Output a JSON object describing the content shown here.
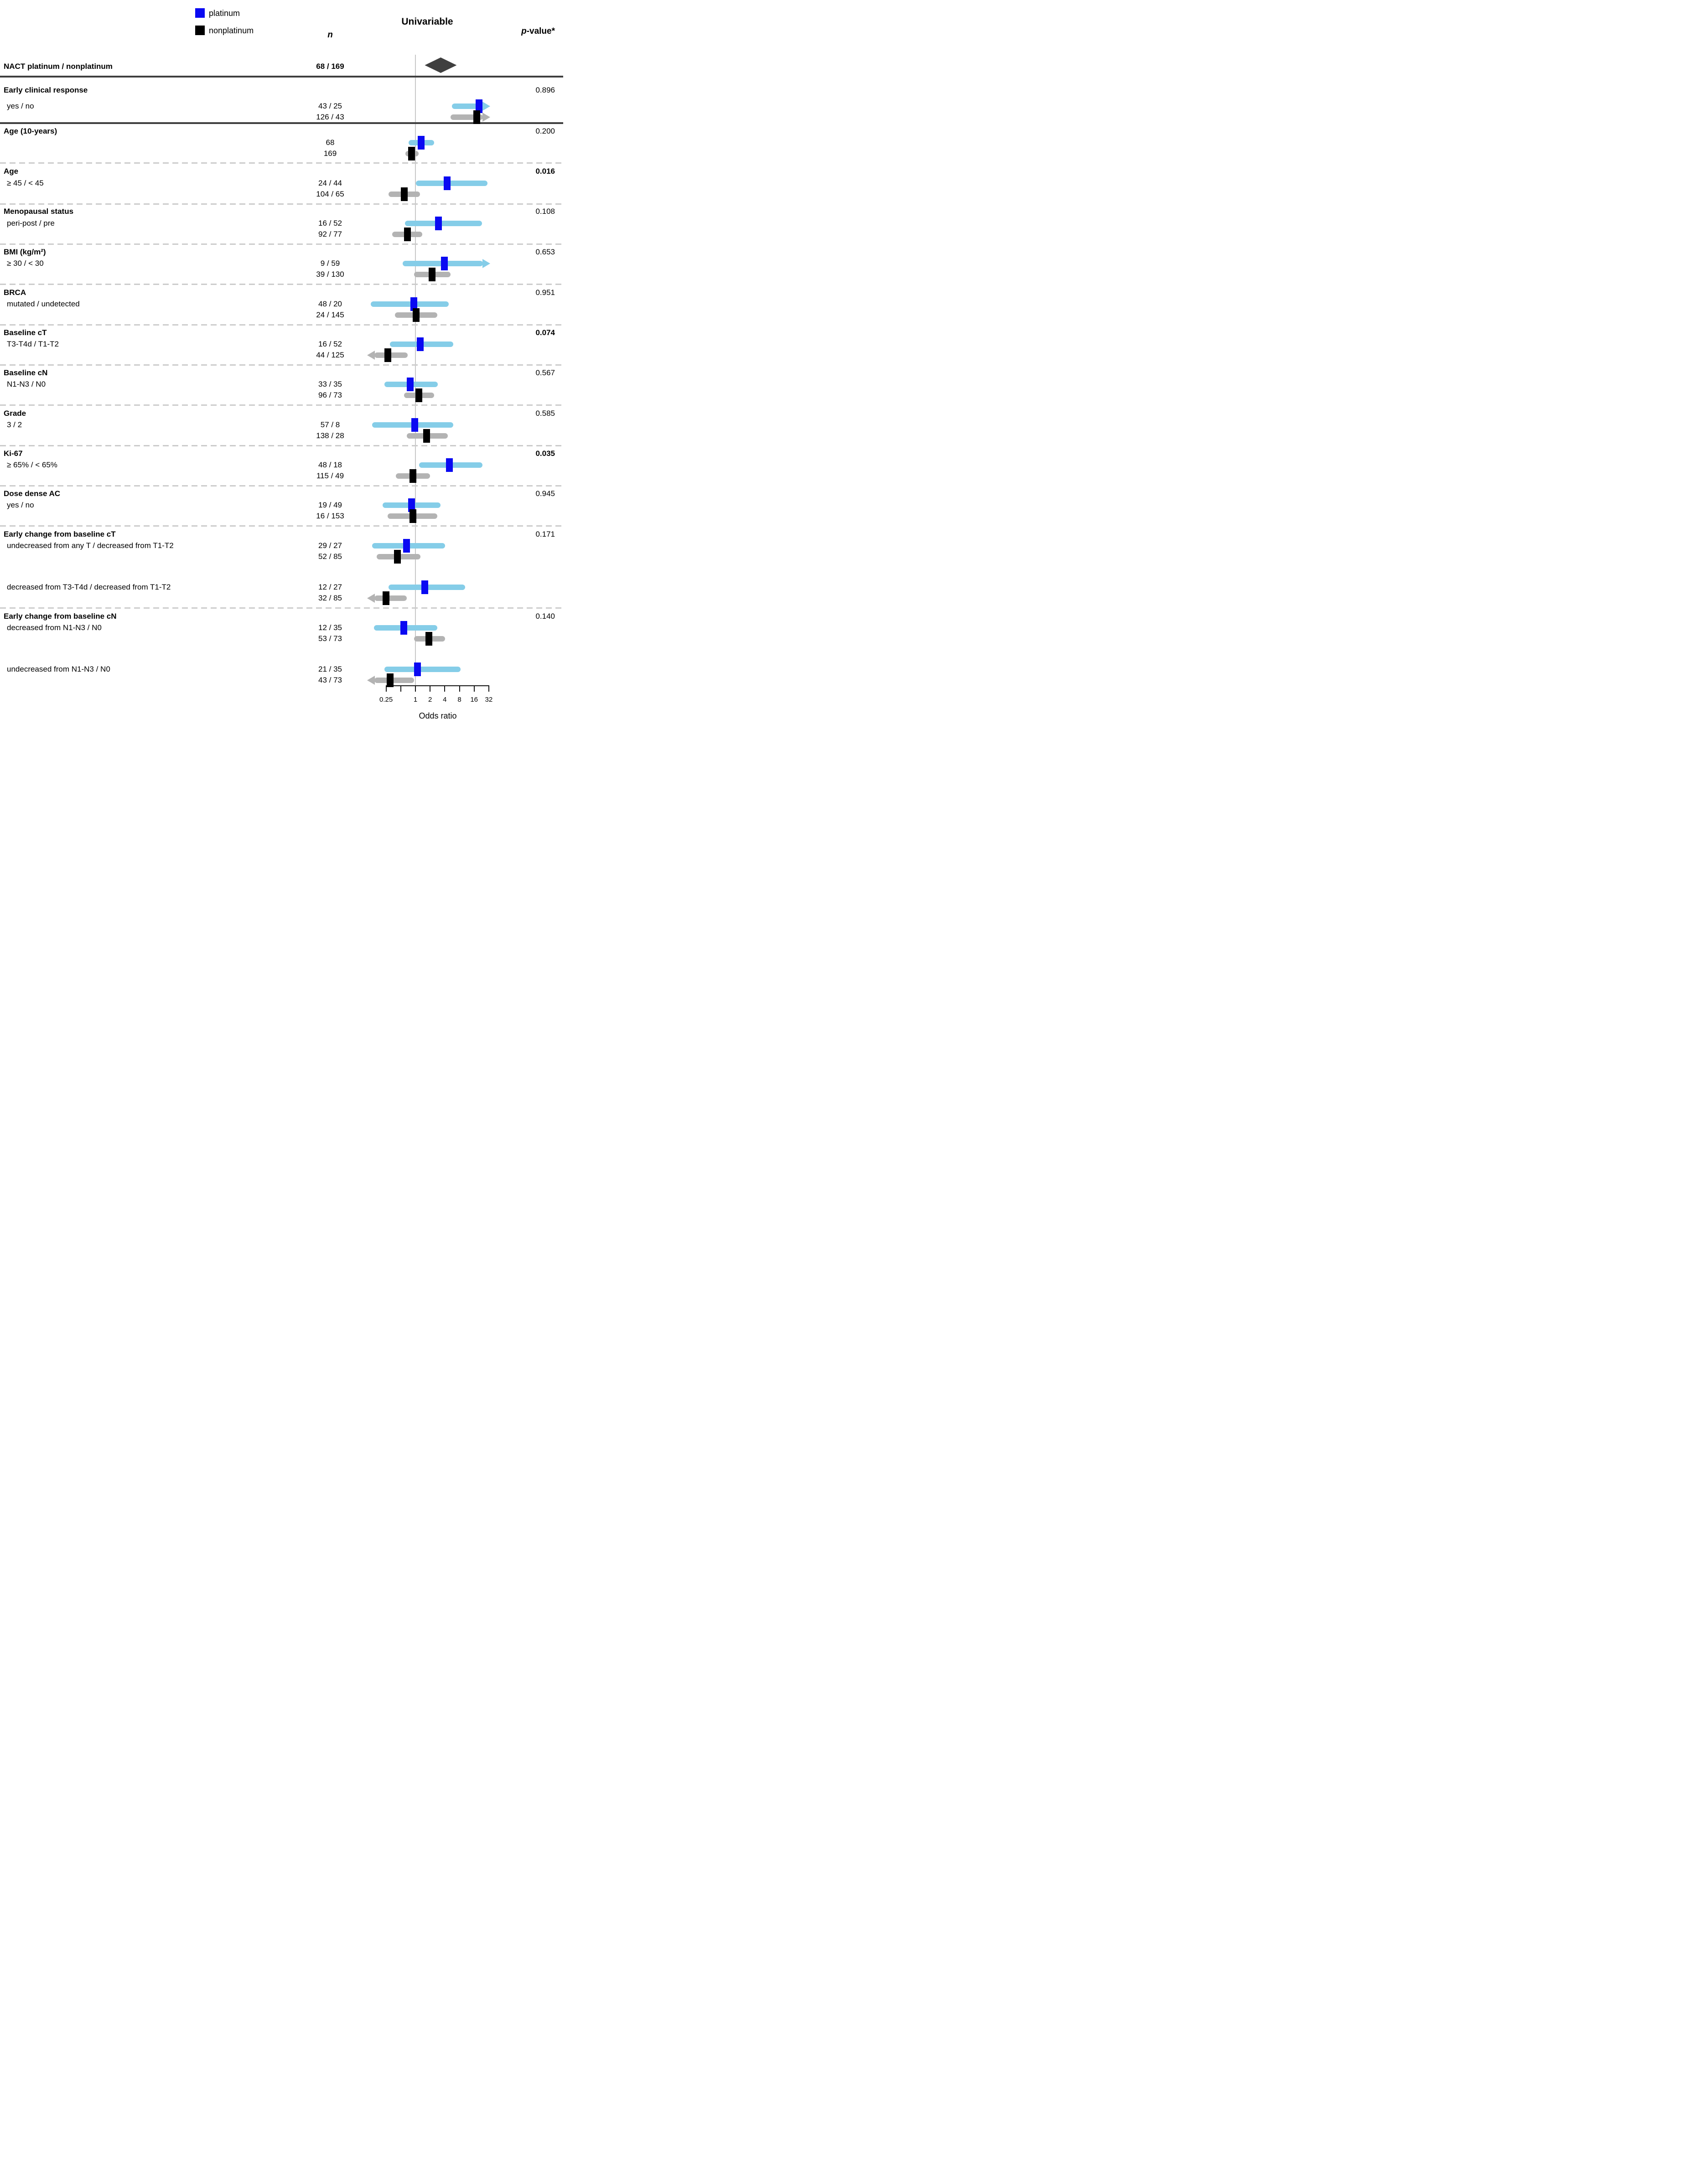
{
  "colors": {
    "platinum": "#0a0af2",
    "platinum_ci": "#85cde8",
    "nonplatinum": "#000000",
    "nonplatinum_ci": "#b3b3b3",
    "summary": "#3f3f3f",
    "grid": "#c8c8c8"
  },
  "legend": {
    "items": [
      {
        "label": "platinum"
      },
      {
        "label": "nonplatinum"
      }
    ]
  },
  "header": {
    "n": "n",
    "effect": "Univariable",
    "p_italic": "p",
    "p_rest": "-value*"
  },
  "chart_data": {
    "type": "scatter",
    "subtype": "forest-plot",
    "x_scale": "log2",
    "xlabel": "Odds ratio",
    "xlim": [
      0.25,
      32
    ],
    "x_ticks": [
      0.25,
      0.5,
      1,
      2,
      4,
      8,
      16,
      32
    ],
    "x_tick_labels": [
      "0.25",
      "",
      "1",
      "2",
      "4",
      "8",
      "16",
      "32"
    ],
    "reference_line": 1,
    "legend": [
      "platinum",
      "nonplatinum"
    ],
    "summary": {
      "label": "NACT platinum / nonplatinum",
      "n": "68 / 169",
      "shape": "diamond",
      "or": 3.3,
      "ci": [
        1.6,
        6.7
      ]
    },
    "sections": [
      {
        "label": "Early clinical response",
        "p": "0.896",
        "p_bold": false,
        "rows": [
          {
            "label": "yes / no",
            "n": "43 / 25",
            "group": "platinum",
            "or": 20.0,
            "ci_lo": 5.6,
            "ci_hi": 33,
            "arrow": "right"
          },
          {
            "n": "126 / 43",
            "group": "nonplatinum",
            "or": 18.0,
            "ci_lo": 5.2,
            "ci_hi": 33,
            "arrow": "right"
          }
        ]
      },
      {
        "label": "Age (10-years)",
        "p": "0.200",
        "p_bold": false,
        "rows": [
          {
            "n": "68",
            "group": "platinum",
            "or": 1.3,
            "ci_lo": 0.72,
            "ci_hi": 2.4,
            "arrow": null
          },
          {
            "n": "169",
            "group": "nonplatinum",
            "or": 0.84,
            "ci_lo": 0.62,
            "ci_hi": 1.16,
            "arrow": null
          }
        ]
      },
      {
        "label": "Age",
        "p": "0.016",
        "p_bold": true,
        "rows": [
          {
            "label": "≥ 45 / < 45",
            "n": "24 / 44",
            "group": "platinum",
            "or": 4.5,
            "ci_lo": 1.02,
            "ci_hi": 30,
            "arrow": null
          },
          {
            "n": "104 / 65",
            "group": "nonplatinum",
            "or": 0.59,
            "ci_lo": 0.28,
            "ci_hi": 1.23,
            "arrow": null
          }
        ]
      },
      {
        "label": "Menopausal status",
        "p": "0.108",
        "p_bold": false,
        "rows": [
          {
            "label": "peri-post / pre",
            "n": "16 / 52",
            "group": "platinum",
            "or": 3.0,
            "ci_lo": 0.61,
            "ci_hi": 23,
            "arrow": null
          },
          {
            "n": "92 / 77",
            "group": "nonplatinum",
            "or": 0.68,
            "ci_lo": 0.33,
            "ci_hi": 1.38,
            "arrow": null
          }
        ]
      },
      {
        "label": "BMI (kg/m²)",
        "p": "0.653",
        "p_bold": false,
        "rows": [
          {
            "label": "≥ 30 / < 30",
            "n": "9 / 59",
            "group": "platinum",
            "or": 3.9,
            "ci_lo": 0.55,
            "ci_hi": 33,
            "arrow": "right"
          },
          {
            "n": "39 / 130",
            "group": "nonplatinum",
            "or": 2.2,
            "ci_lo": 0.93,
            "ci_hi": 5.2,
            "arrow": null
          }
        ]
      },
      {
        "label": "BRCA",
        "p": "0.951",
        "p_bold": false,
        "rows": [
          {
            "label": "mutated / undetected",
            "n": "48 / 20",
            "group": "platinum",
            "or": 0.92,
            "ci_lo": 0.12,
            "ci_hi": 4.8,
            "arrow": null
          },
          {
            "n": "24 / 145",
            "group": "nonplatinum",
            "or": 1.03,
            "ci_lo": 0.38,
            "ci_hi": 2.8,
            "arrow": null
          }
        ]
      },
      {
        "label": "Baseline cT",
        "p": "0.074",
        "p_bold": true,
        "rows": [
          {
            "label": "T3-T4d / T1-T2",
            "n": "16 / 52",
            "group": "platinum",
            "or": 1.25,
            "ci_lo": 0.3,
            "ci_hi": 6.0,
            "arrow": null
          },
          {
            "n": "44 / 125",
            "group": "nonplatinum",
            "or": 0.27,
            "ci_lo": 0.1,
            "ci_hi": 0.7,
            "arrow": "left"
          }
        ]
      },
      {
        "label": "Baseline cN",
        "p": "0.567",
        "p_bold": false,
        "rows": [
          {
            "label": "N1-N3 / N0",
            "n": "33 / 35",
            "group": "platinum",
            "or": 0.78,
            "ci_lo": 0.23,
            "ci_hi": 2.9,
            "arrow": null
          },
          {
            "n": "96 / 73",
            "group": "nonplatinum",
            "or": 1.17,
            "ci_lo": 0.58,
            "ci_hi": 2.4,
            "arrow": null
          }
        ]
      },
      {
        "label": "Grade",
        "p": "0.585",
        "p_bold": false,
        "rows": [
          {
            "label": "3 / 2",
            "n": "57 / 8",
            "group": "platinum",
            "or": 0.96,
            "ci_lo": 0.13,
            "ci_hi": 6.0,
            "arrow": null
          },
          {
            "n": "138 / 28",
            "group": "nonplatinum",
            "or": 1.7,
            "ci_lo": 0.67,
            "ci_hi": 4.6,
            "arrow": null
          }
        ]
      },
      {
        "label": "Ki-67",
        "p": "0.035",
        "p_bold": true,
        "rows": [
          {
            "label": "≥ 65% / < 65%",
            "n": "48 / 18",
            "group": "platinum",
            "or": 5.0,
            "ci_lo": 1.2,
            "ci_hi": 24,
            "arrow": null
          },
          {
            "n": "115 / 49",
            "group": "nonplatinum",
            "or": 0.89,
            "ci_lo": 0.4,
            "ci_hi": 2.0,
            "arrow": null
          }
        ]
      },
      {
        "label": "Dose dense AC",
        "p": "0.945",
        "p_bold": false,
        "rows": [
          {
            "label": "yes / no",
            "n": "19 / 49",
            "group": "platinum",
            "or": 0.83,
            "ci_lo": 0.21,
            "ci_hi": 3.3,
            "arrow": null
          },
          {
            "n": "16 / 153",
            "group": "nonplatinum",
            "or": 0.89,
            "ci_lo": 0.27,
            "ci_hi": 2.8,
            "arrow": null
          }
        ]
      },
      {
        "label": "Early change from baseline cT",
        "p": "0.171",
        "p_bold": false,
        "rows": [
          {
            "label": "undecreased from any T / decreased from T1-T2",
            "n": "29 / 27",
            "group": "platinum",
            "or": 0.66,
            "ci_lo": 0.13,
            "ci_hi": 4.1,
            "arrow": null
          },
          {
            "n": "52 / 85",
            "group": "nonplatinum",
            "or": 0.43,
            "ci_lo": 0.16,
            "ci_hi": 1.27,
            "arrow": null
          },
          {
            "label": "decreased from T3-T4d / decreased from T1-T2",
            "n": "12 / 27",
            "group": "platinum",
            "or": 1.55,
            "ci_lo": 0.28,
            "ci_hi": 10.5,
            "arrow": null
          },
          {
            "n": "32 / 85",
            "group": "nonplatinum",
            "or": 0.25,
            "ci_lo": 0.1,
            "ci_hi": 0.66,
            "arrow": "left"
          }
        ]
      },
      {
        "label": "Early change from baseline cN",
        "p": "0.140",
        "p_bold": false,
        "rows": [
          {
            "label": "decreased from N1-N3 / N0",
            "n": "12 / 35",
            "group": "platinum",
            "or": 0.58,
            "ci_lo": 0.14,
            "ci_hi": 2.8,
            "arrow": null
          },
          {
            "n": "53 / 73",
            "group": "nonplatinum",
            "or": 1.9,
            "ci_lo": 0.93,
            "ci_hi": 4.1,
            "arrow": null
          },
          {
            "label": "undecreased from N1-N3 / N0",
            "n": "21 / 35",
            "group": "platinum",
            "or": 1.1,
            "ci_lo": 0.23,
            "ci_hi": 8.4,
            "arrow": null
          },
          {
            "n": "43 / 73",
            "group": "nonplatinum",
            "or": 0.3,
            "ci_lo": 0.1,
            "ci_hi": 0.93,
            "arrow": "left"
          }
        ]
      }
    ]
  }
}
